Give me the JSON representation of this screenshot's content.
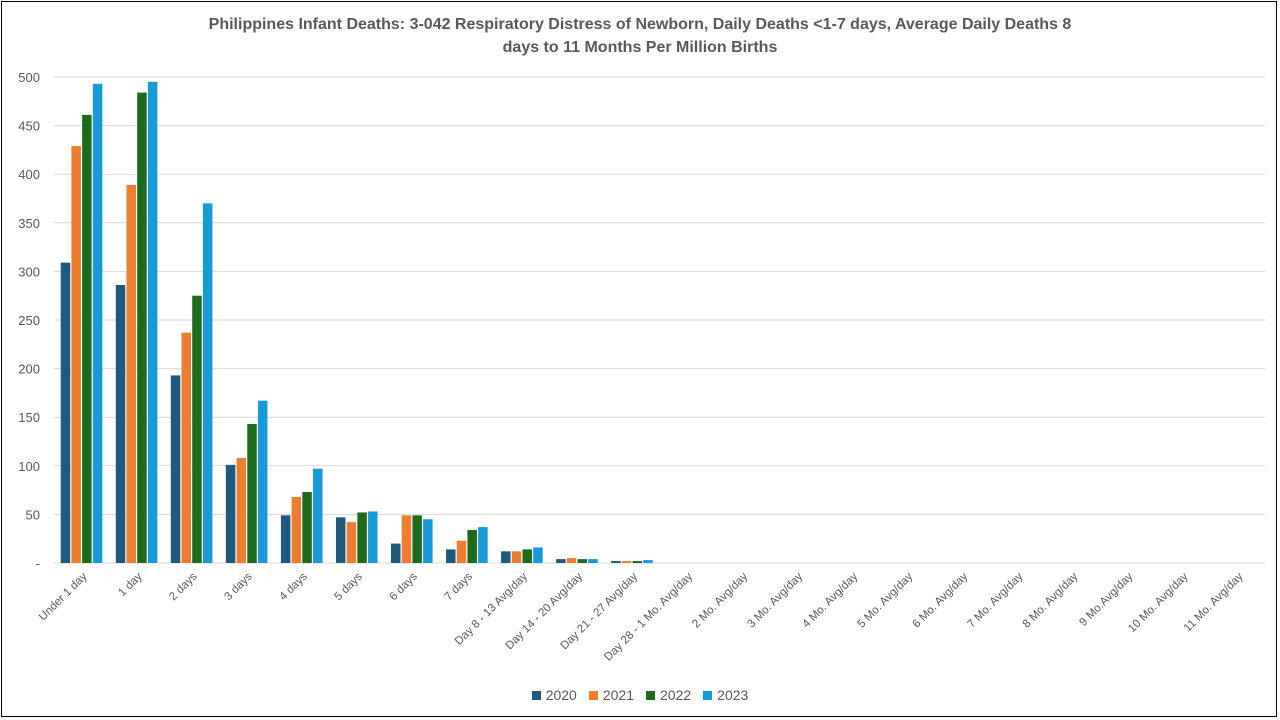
{
  "chart_data": {
    "type": "bar",
    "title_lines": [
      "Philippines Infant Deaths: 3-042 Respiratory Distress of Newborn, Daily Deaths <1-7 days, Average Daily Deaths 8",
      "days to 11 Months Per Million Births"
    ],
    "xlabel": "",
    "ylabel": "",
    "ylim": [
      0,
      500
    ],
    "yticks": [
      0,
      50,
      100,
      150,
      200,
      250,
      300,
      350,
      400,
      450,
      500
    ],
    "ytick_labels": [
      "-",
      "50",
      "100",
      "150",
      "200",
      "250",
      "300",
      "350",
      "400",
      "450",
      "500"
    ],
    "grid": true,
    "legend_position": "bottom",
    "categories": [
      "Under 1 day",
      "1 day",
      "2 days",
      "3 days",
      "4 days",
      "5 days",
      "6 days",
      "7 days",
      "Day 8 - 13 Avg/day",
      "Day 14 - 20 Avg/day",
      "Day 21 - 27 Avg/day",
      "Day 28 - 1 Mo. Avg/day",
      "2 Mo. Avg/day",
      "3 Mo.  Avg/day",
      "4 Mo. Avg/day",
      "5 Mo.  Avg/day",
      "6 Mo. Avg/day",
      "7 Mo. Avg/day",
      "8 Mo. Avg/day",
      "9 Mo.Avg/day",
      "10 Mo. Avg/day",
      "11 Mo. Avg/day"
    ],
    "series": [
      {
        "name": "2020",
        "color": "#1f5a7e",
        "values": [
          309,
          286,
          193,
          101,
          49,
          47,
          20,
          14,
          12,
          4,
          2,
          0,
          0,
          0,
          0,
          0,
          0,
          0,
          0,
          0,
          0,
          0
        ]
      },
      {
        "name": "2021",
        "color": "#ed7d31",
        "values": [
          429,
          389,
          237,
          108,
          68,
          42,
          49,
          23,
          12,
          5,
          2,
          0,
          0,
          0,
          0,
          0,
          0,
          0,
          0,
          0,
          0,
          0
        ]
      },
      {
        "name": "2022",
        "color": "#1e6b1e",
        "values": [
          461,
          484,
          275,
          143,
          73,
          52,
          49,
          34,
          14,
          4,
          2,
          0,
          0,
          0,
          0,
          0,
          0,
          0,
          0,
          0,
          0,
          0
        ]
      },
      {
        "name": "2023",
        "color": "#179ad7",
        "values": [
          493,
          495,
          370,
          167,
          97,
          53,
          45,
          37,
          16,
          4,
          3,
          0,
          0,
          0,
          0,
          0,
          0,
          0,
          0,
          0,
          0,
          0
        ]
      }
    ]
  }
}
